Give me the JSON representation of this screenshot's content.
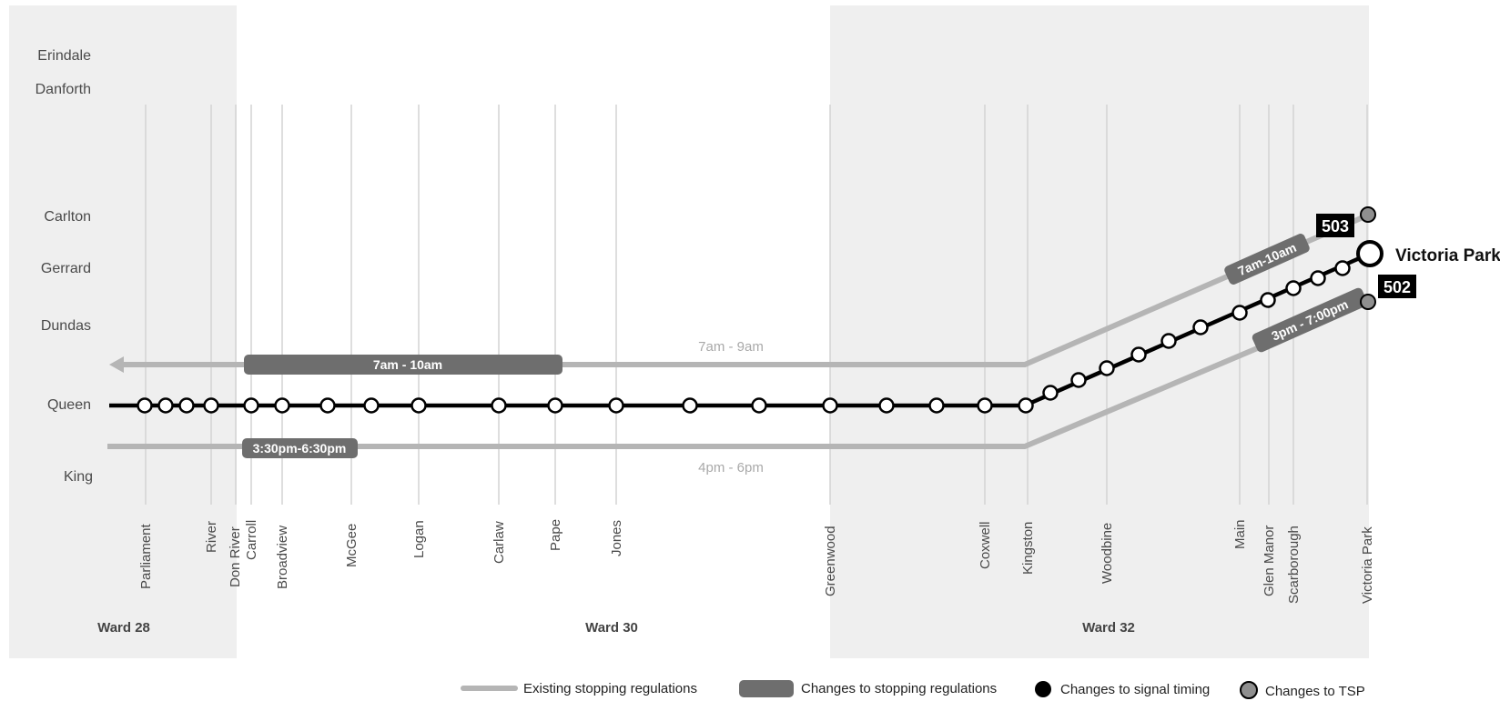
{
  "wards": [
    "Ward 28",
    "Ward 30",
    "Ward 32"
  ],
  "streets": [
    "Erindale",
    "Danforth",
    "Carlton",
    "Gerrard",
    "Dundas",
    "Queen",
    "King"
  ],
  "cross_streets": [
    "Parliament",
    "River",
    "Don River",
    "Carroll",
    "Broadview",
    "McGee",
    "Logan",
    "Carlaw",
    "Pape",
    "Jones",
    "Greenwood",
    "Coxwell",
    "Kingston",
    "Woodbine",
    "Main",
    "Glen Manor",
    "Scarborough",
    "Victoria Park"
  ],
  "lines": {
    "north_times": "7am - 9am",
    "south_times": "4pm - 6pm",
    "north_change": "7am - 10am",
    "south_change": "3:30pm-6:30pm",
    "kingston_north_change": "7am-10am",
    "kingston_south_change": "3pm - 7:00pm"
  },
  "routes": {
    "route_503": "503",
    "route_502": "502",
    "terminus": "Victoria Park"
  },
  "legend": {
    "existing": "Existing stopping regulations",
    "changes_stopping": "Changes to stopping regulations",
    "signal": "Changes to signal timing",
    "tsp": "Changes to TSP"
  },
  "colors": {
    "ward_band": "#efefef",
    "existing_line": "#b5b5b5",
    "change_band": "#6e6e6e",
    "main_line": "#000000",
    "tsp_dot": "#8f8f8f"
  }
}
